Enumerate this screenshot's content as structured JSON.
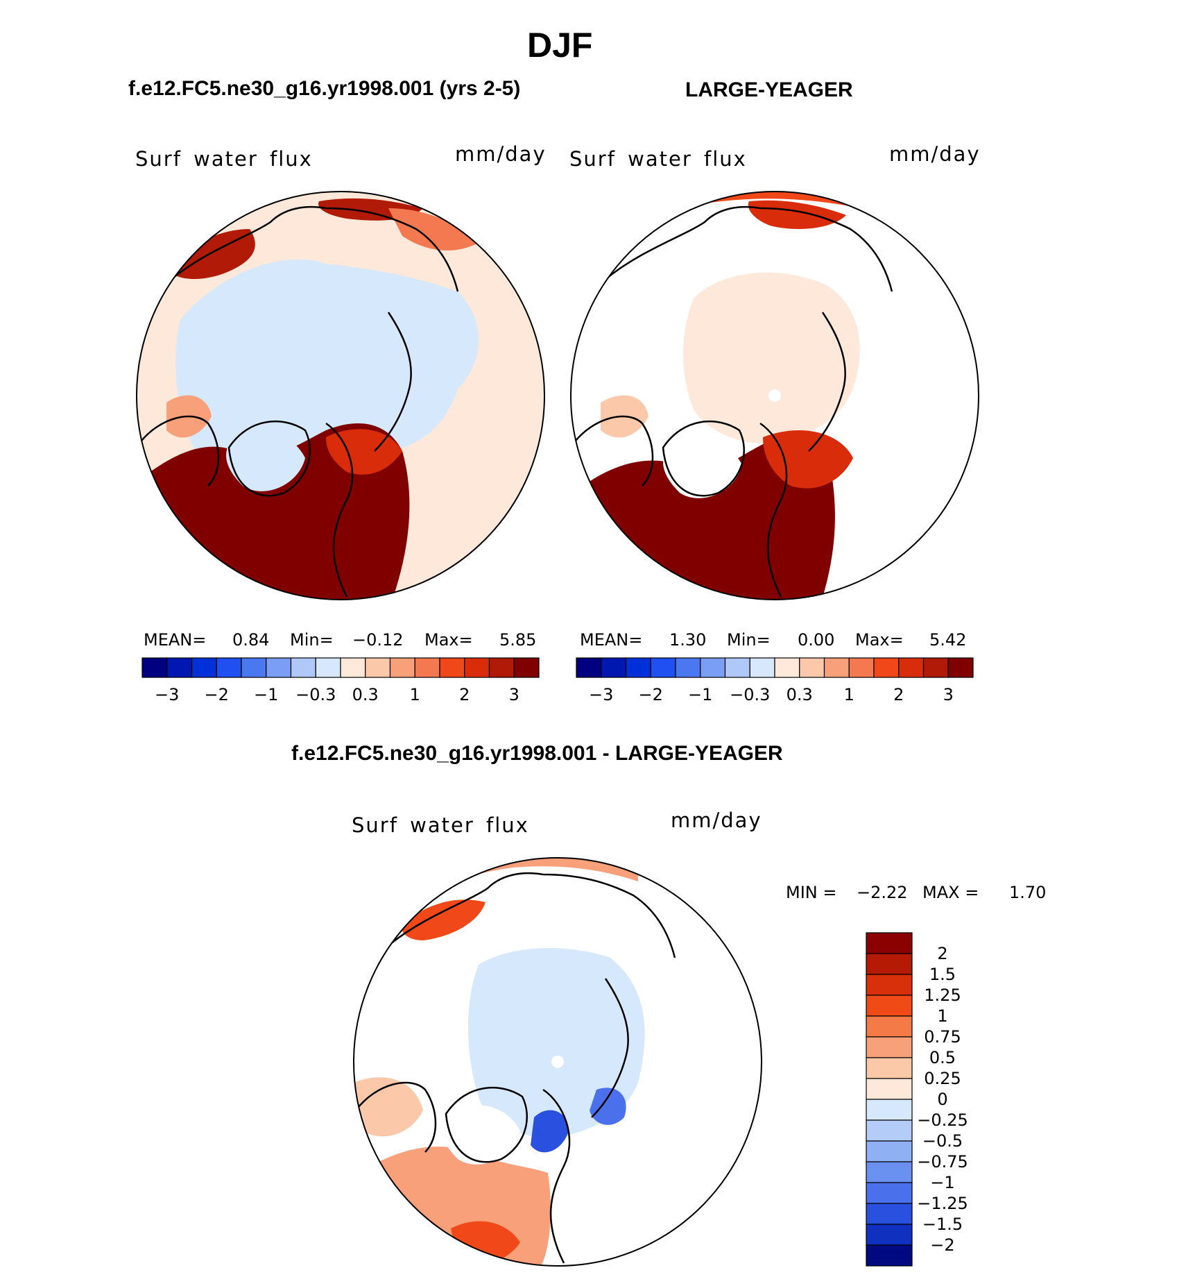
{
  "title": "DJF",
  "panels": [
    {
      "id": "test",
      "case_title": "f.e12.FC5.ne30_g16.yr1998.001 (yrs 2-5)",
      "variable_label": "Surf water flux",
      "units": "mm/day",
      "stats": {
        "mean_label": "MEAN=",
        "mean": "0.84",
        "min_label": "Min=",
        "min": "−0.12",
        "max_label": "Max=",
        "max": "5.85"
      }
    },
    {
      "id": "obs",
      "case_title": "LARGE-YEAGER",
      "variable_label": "Surf water flux",
      "units": "mm/day",
      "stats": {
        "mean_label": "MEAN=",
        "mean": "1.30",
        "min_label": "Min=",
        "min": "0.00",
        "max_label": "Max=",
        "max": "5.42"
      }
    }
  ],
  "diff_panel": {
    "case_title": "f.e12.FC5.ne30_g16.yr1998.001 - LARGE-YEAGER",
    "variable_label": "Surf water flux",
    "units": "mm/day",
    "stats": {
      "min_label": "MIN =",
      "min": "−2.22",
      "max_label": "MAX =",
      "max": "1.70"
    }
  },
  "chart_data": [
    {
      "type": "heatmap",
      "projection": "north-polar-stereographic",
      "title": "f.e12.FC5.ne30_g16.yr1998.001 (yrs 2-5)",
      "variable": "Surf water flux",
      "units": "mm/day",
      "mean": 0.84,
      "min": -0.12,
      "max": 5.85,
      "colorbar": {
        "orientation": "horizontal",
        "colors": [
          "#000080",
          "#0018b0",
          "#0030d8",
          "#2050f0",
          "#4a78f0",
          "#7a9ef4",
          "#b0c8f8",
          "#d8e8fc",
          "#fde8da",
          "#fcc8aa",
          "#f8a07a",
          "#f47850",
          "#f04818",
          "#d82c0a",
          "#b01a06",
          "#800000"
        ],
        "tick_labels": [
          "−3",
          "−2",
          "−1",
          "−0.3",
          "0.3",
          "1",
          "2",
          "3"
        ]
      }
    },
    {
      "type": "heatmap",
      "projection": "north-polar-stereographic",
      "title": "LARGE-YEAGER",
      "variable": "Surf water flux",
      "units": "mm/day",
      "mean": 1.3,
      "min": 0.0,
      "max": 5.42,
      "colorbar": {
        "orientation": "horizontal",
        "colors": [
          "#000080",
          "#0018b0",
          "#0030d8",
          "#2050f0",
          "#4a78f0",
          "#7a9ef4",
          "#b0c8f8",
          "#d8e8fc",
          "#fde8da",
          "#fcc8aa",
          "#f8a07a",
          "#f47850",
          "#f04818",
          "#d82c0a",
          "#b01a06",
          "#800000"
        ],
        "tick_labels": [
          "−3",
          "−2",
          "−1",
          "−0.3",
          "0.3",
          "1",
          "2",
          "3"
        ]
      }
    },
    {
      "type": "heatmap",
      "projection": "north-polar-stereographic",
      "title": "f.e12.FC5.ne30_g16.yr1998.001 - LARGE-YEAGER",
      "variable": "Surf water flux",
      "units": "mm/day",
      "min": -2.22,
      "max": 1.7,
      "colorbar": {
        "orientation": "vertical",
        "colors": [
          "#8b0000",
          "#b51a04",
          "#d8300a",
          "#f04a16",
          "#f47a48",
          "#f8a07a",
          "#fbc9a8",
          "#fde8da",
          "#d6e8fc",
          "#b4ccf8",
          "#90b0f4",
          "#6a90f0",
          "#4a70ec",
          "#2a50e0",
          "#1030c0",
          "#000a80"
        ],
        "tick_labels": [
          "2",
          "1.5",
          "1.25",
          "1",
          "0.75",
          "0.5",
          "0.25",
          "0",
          "−0.25",
          "−0.5",
          "−0.75",
          "−1",
          "−1.25",
          "−1.5",
          "−2"
        ]
      }
    }
  ]
}
